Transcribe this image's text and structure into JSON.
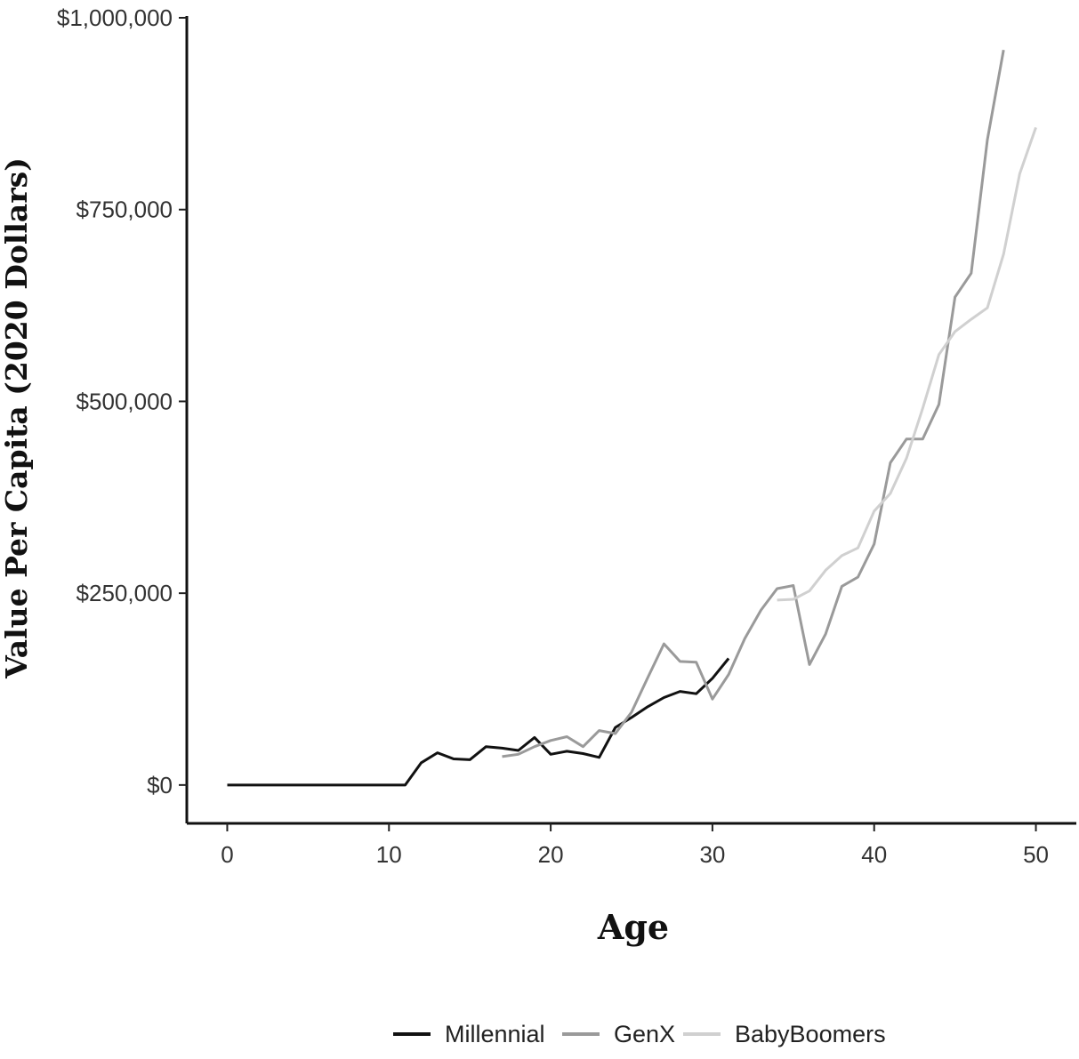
{
  "chart_data": {
    "type": "line",
    "title": "",
    "xlabel": "Age",
    "ylabel": "Value Per Capita (2020 Dollars)",
    "xlim": [
      -2.5,
      52.5
    ],
    "ylim": [
      -50000,
      1000000
    ],
    "x_ticks": [
      0,
      10,
      20,
      30,
      40,
      50
    ],
    "x_tick_labels": [
      "0",
      "10",
      "20",
      "30",
      "40",
      "50"
    ],
    "y_ticks": [
      0,
      250000,
      500000,
      750000,
      1000000
    ],
    "y_tick_labels": [
      "$0",
      "$250,000",
      "$500,000",
      "$750,000",
      "$1,000,000"
    ],
    "grid": false,
    "legend_position": "bottom",
    "series": [
      {
        "name": "Millennial",
        "color": "#111111",
        "points": [
          [
            0,
            0
          ],
          [
            1,
            0
          ],
          [
            2,
            0
          ],
          [
            3,
            0
          ],
          [
            4,
            0
          ],
          [
            5,
            0
          ],
          [
            6,
            0
          ],
          [
            7,
            0
          ],
          [
            8,
            0
          ],
          [
            9,
            0
          ],
          [
            10,
            0
          ],
          [
            11,
            0
          ],
          [
            12,
            29000
          ],
          [
            13,
            42000
          ],
          [
            14,
            34000
          ],
          [
            15,
            33000
          ],
          [
            16,
            50000
          ],
          [
            17,
            48000
          ],
          [
            18,
            45000
          ],
          [
            19,
            62000
          ],
          [
            20,
            40000
          ],
          [
            21,
            44000
          ],
          [
            22,
            41000
          ],
          [
            23,
            36000
          ],
          [
            24,
            75000
          ],
          [
            25,
            88000
          ],
          [
            26,
            102000
          ],
          [
            27,
            114000
          ],
          [
            28,
            122000
          ],
          [
            29,
            119000
          ],
          [
            30,
            139000
          ],
          [
            31,
            165000
          ]
        ]
      },
      {
        "name": "GenX",
        "color": "#9a9a9a",
        "points": [
          [
            17,
            37000
          ],
          [
            18,
            40000
          ],
          [
            19,
            50000
          ],
          [
            20,
            58000
          ],
          [
            21,
            63000
          ],
          [
            22,
            50000
          ],
          [
            23,
            71000
          ],
          [
            24,
            67000
          ],
          [
            25,
            95000
          ],
          [
            26,
            140000
          ],
          [
            27,
            184000
          ],
          [
            28,
            161000
          ],
          [
            29,
            160000
          ],
          [
            30,
            112000
          ],
          [
            31,
            144000
          ],
          [
            32,
            191000
          ],
          [
            33,
            228000
          ],
          [
            34,
            256000
          ],
          [
            35,
            260000
          ],
          [
            36,
            157000
          ],
          [
            37,
            197000
          ],
          [
            38,
            259000
          ],
          [
            39,
            271000
          ],
          [
            40,
            314000
          ],
          [
            41,
            420000
          ],
          [
            42,
            451000
          ],
          [
            43,
            451000
          ],
          [
            44,
            496000
          ],
          [
            45,
            636000
          ],
          [
            46,
            667000
          ],
          [
            47,
            841000
          ],
          [
            48,
            958000
          ]
        ]
      },
      {
        "name": "BabyBoomers",
        "color": "#d0d0d0",
        "points": [
          [
            34,
            241000
          ],
          [
            35,
            242000
          ],
          [
            36,
            253000
          ],
          [
            37,
            280000
          ],
          [
            38,
            299000
          ],
          [
            39,
            309000
          ],
          [
            40,
            357000
          ],
          [
            41,
            380000
          ],
          [
            42,
            426000
          ],
          [
            43,
            491000
          ],
          [
            44,
            561000
          ],
          [
            45,
            591000
          ],
          [
            46,
            607000
          ],
          [
            47,
            622000
          ],
          [
            48,
            692000
          ],
          [
            49,
            797000
          ],
          [
            50,
            857000
          ]
        ]
      }
    ]
  }
}
